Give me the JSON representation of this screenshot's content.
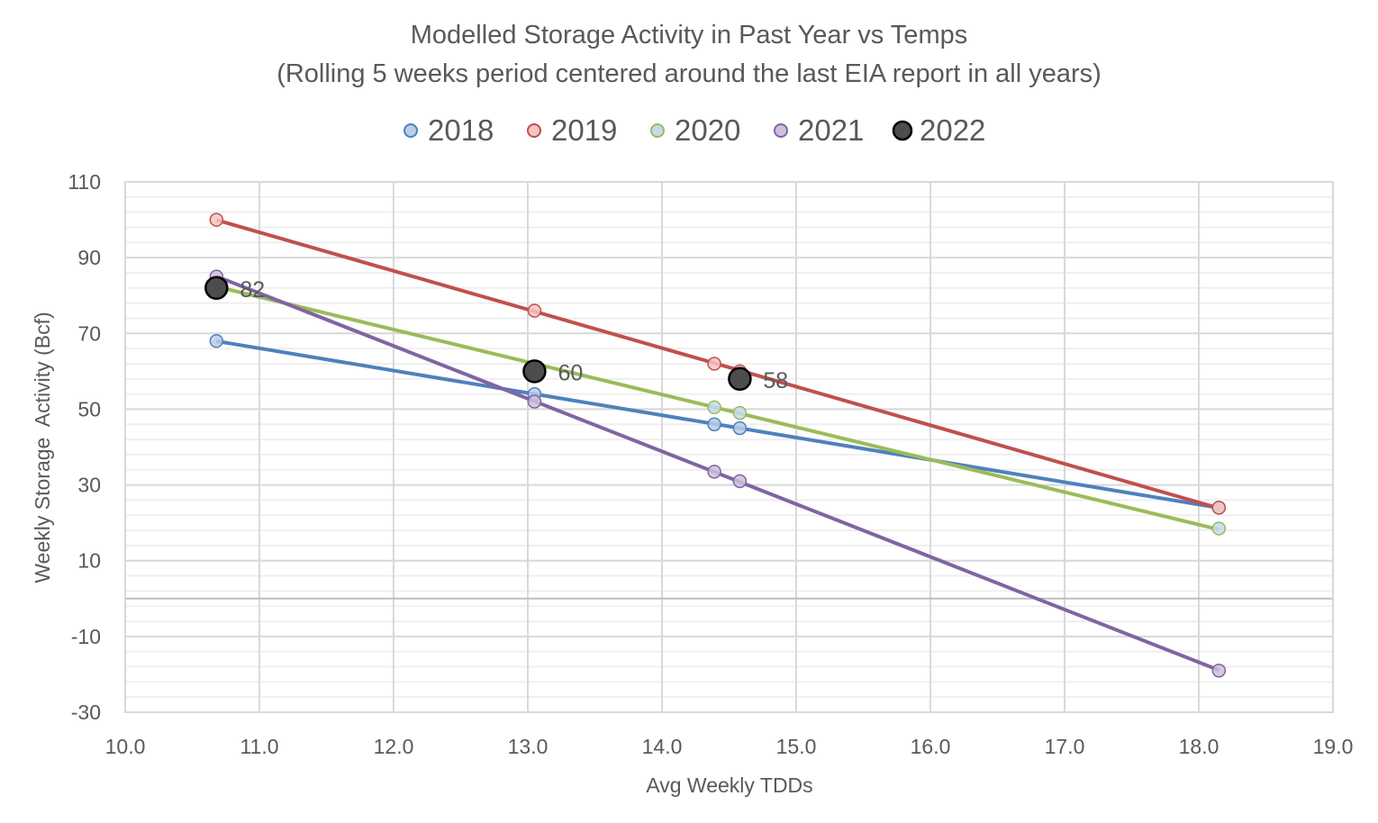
{
  "chart_data": {
    "type": "scatter",
    "title": "Modelled Storage Activity in Past Year vs Temps",
    "subtitle": "(Rolling 5 weeks period centered around the last EIA report in all years)",
    "xlabel": "Avg Weekly TDDs",
    "ylabel": "Weekly Storage  Activity (Bcf)",
    "xlim": [
      10,
      19
    ],
    "ylim": [
      -30,
      110
    ],
    "x_ticks": [
      "10.0",
      "11.0",
      "12.0",
      "13.0",
      "14.0",
      "15.0",
      "16.0",
      "17.0",
      "18.0",
      "19.0"
    ],
    "y_ticks": [
      "110",
      "90",
      "70",
      "50",
      "30",
      "10",
      "-10",
      "-30"
    ],
    "grid": true,
    "legend_position": "top",
    "series": [
      {
        "name": "2018",
        "line_color": "#4F81BD",
        "marker_fill": "#B9CDE5",
        "marker_edge": "#4F81BD",
        "trendline": true,
        "points": [
          {
            "x": 10.68,
            "y": 68
          },
          {
            "x": 13.05,
            "y": 54
          },
          {
            "x": 14.39,
            "y": 46
          },
          {
            "x": 14.58,
            "y": 45
          },
          {
            "x": 18.15,
            "y": 24
          }
        ]
      },
      {
        "name": "2019",
        "line_color": "#C0504D",
        "marker_fill": "#F2C4C3",
        "marker_edge": "#C0504D",
        "trendline": true,
        "points": [
          {
            "x": 10.68,
            "y": 100
          },
          {
            "x": 13.05,
            "y": 76
          },
          {
            "x": 14.39,
            "y": 62
          },
          {
            "x": 14.58,
            "y": 60
          },
          {
            "x": 18.15,
            "y": 24
          }
        ]
      },
      {
        "name": "2020",
        "line_color": "#9BBB59",
        "marker_fill": "#C6D9F0",
        "marker_edge": "#9BBB59",
        "trendline": true,
        "points": [
          {
            "x": 10.68,
            "y": 83
          },
          {
            "x": 13.05,
            "y": 61
          },
          {
            "x": 14.39,
            "y": 50.5
          },
          {
            "x": 14.58,
            "y": 49
          },
          {
            "x": 18.15,
            "y": 18.5
          }
        ]
      },
      {
        "name": "2021",
        "line_color": "#8064A2",
        "marker_fill": "#CCC0DA",
        "marker_edge": "#8064A2",
        "trendline": true,
        "points": [
          {
            "x": 10.68,
            "y": 85
          },
          {
            "x": 13.05,
            "y": 52
          },
          {
            "x": 14.39,
            "y": 33.5
          },
          {
            "x": 14.58,
            "y": 31
          },
          {
            "x": 18.15,
            "y": -19
          }
        ]
      },
      {
        "name": "2022",
        "line_color": "#000000",
        "marker_fill": "#4D4D4D",
        "marker_edge": "#000000",
        "trendline": false,
        "large_marker": true,
        "points": [
          {
            "x": 10.68,
            "y": 82,
            "label": "82"
          },
          {
            "x": 13.05,
            "y": 60,
            "label": "60"
          },
          {
            "x": 14.58,
            "y": 58,
            "label": "58"
          }
        ]
      }
    ]
  }
}
